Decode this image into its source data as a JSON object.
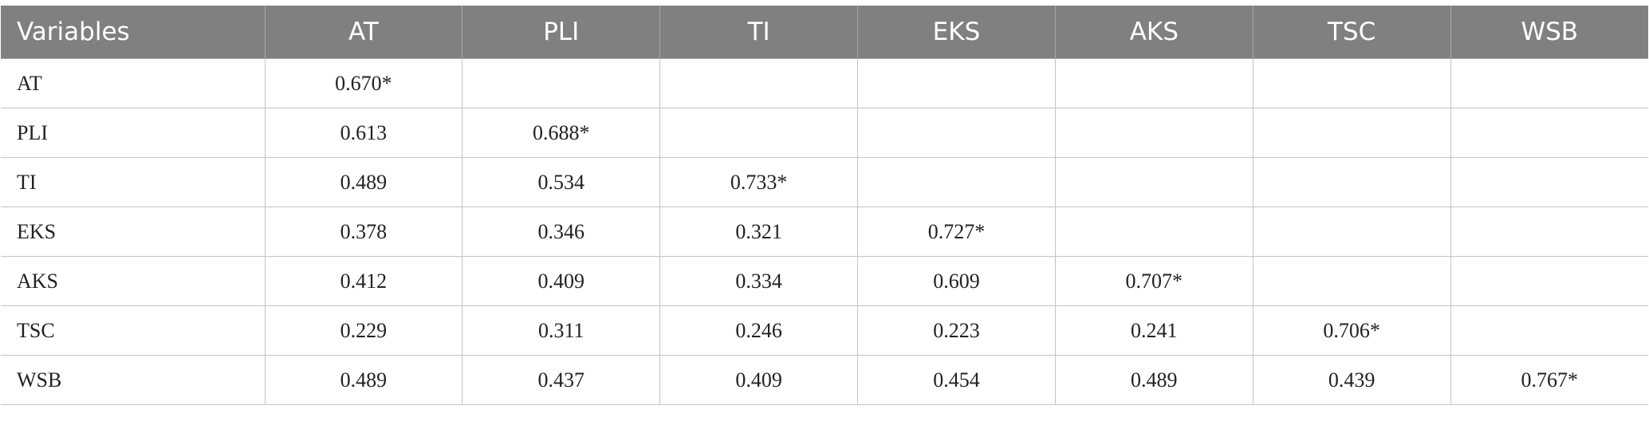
{
  "table": {
    "header": [
      "Variables",
      "AT",
      "PLI",
      "TI",
      "EKS",
      "AKS",
      "TSC",
      "WSB"
    ],
    "rows": [
      [
        "AT",
        "0.670*",
        null,
        null,
        null,
        null,
        null,
        null
      ],
      [
        "PLI",
        "0.613",
        "0.688*",
        null,
        null,
        null,
        null,
        null
      ],
      [
        "TI",
        "0.489",
        "0.534",
        "0.733*",
        null,
        null,
        null,
        null
      ],
      [
        "EKS",
        "0.378",
        "0.346",
        "0.321",
        "0.727*",
        null,
        null,
        null
      ],
      [
        "AKS",
        "0.412",
        "0.409",
        "0.334",
        "0.609",
        "0.707*",
        null,
        null
      ],
      [
        "TSC",
        "0.229",
        "0.311",
        "0.246",
        "0.223",
        "0.241",
        "0.706*",
        null
      ],
      [
        "WSB",
        "0.489",
        "0.437",
        "0.409",
        "0.454",
        "0.489",
        "0.439",
        "0.767*"
      ]
    ]
  }
}
